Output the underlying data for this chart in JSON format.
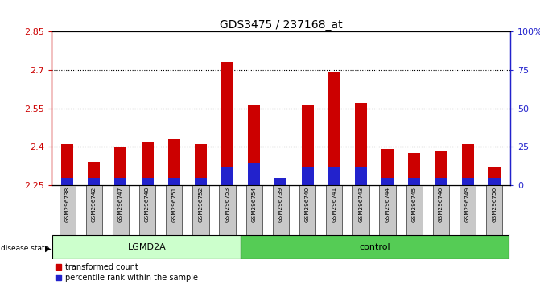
{
  "title": "GDS3475 / 237168_at",
  "samples": [
    "GSM296738",
    "GSM296742",
    "GSM296747",
    "GSM296748",
    "GSM296751",
    "GSM296752",
    "GSM296753",
    "GSM296754",
    "GSM296739",
    "GSM296740",
    "GSM296741",
    "GSM296743",
    "GSM296744",
    "GSM296745",
    "GSM296746",
    "GSM296749",
    "GSM296750"
  ],
  "red_values": [
    2.41,
    2.34,
    2.4,
    2.42,
    2.43,
    2.41,
    2.73,
    2.56,
    2.27,
    2.56,
    2.69,
    2.57,
    2.39,
    2.375,
    2.385,
    2.41,
    2.32
  ],
  "blue_pct": [
    5,
    5,
    5,
    5,
    5,
    5,
    12,
    14,
    5,
    12,
    12,
    12,
    5,
    5,
    5,
    5,
    5
  ],
  "ymin": 2.25,
  "ymax": 2.85,
  "yticks": [
    2.25,
    2.4,
    2.55,
    2.7,
    2.85
  ],
  "right_yticks": [
    0,
    25,
    50,
    75,
    100
  ],
  "lgmd2a_count": 7,
  "control_count": 10,
  "bar_width": 0.45,
  "red_color": "#cc0000",
  "blue_color": "#2222cc",
  "lgmd2a_color": "#ccffcc",
  "control_color": "#55cc55",
  "bar_bg_color": "#c8c8c8",
  "left_axis_color": "#cc0000",
  "right_axis_color": "#2222cc"
}
